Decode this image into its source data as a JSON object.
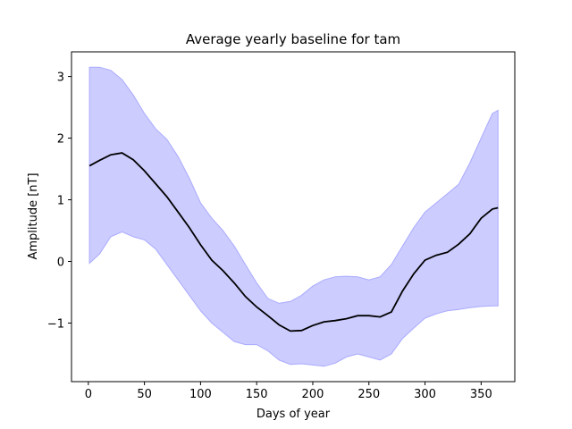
{
  "chart_data": {
    "type": "area",
    "title": "Average yearly baseline for tam",
    "xlabel": "Days of year",
    "ylabel": "Amplitude [nT]",
    "xlim": [
      -15,
      380
    ],
    "ylim": [
      -1.95,
      3.4
    ],
    "xticks": [
      0,
      50,
      100,
      150,
      200,
      250,
      300,
      350
    ],
    "yticks": [
      -1,
      0,
      1,
      2,
      3
    ],
    "grid": false,
    "colors": {
      "mean": "#000000",
      "band": "#ccccff",
      "band_edge": "#aaaaff"
    },
    "x": [
      1,
      10,
      20,
      30,
      40,
      50,
      60,
      70,
      80,
      90,
      100,
      110,
      120,
      130,
      140,
      150,
      160,
      170,
      180,
      190,
      200,
      210,
      220,
      230,
      240,
      250,
      260,
      270,
      280,
      290,
      300,
      310,
      320,
      330,
      340,
      350,
      360,
      365
    ],
    "series": [
      {
        "role": "mean",
        "values": [
          1.55,
          1.64,
          1.73,
          1.76,
          1.65,
          1.47,
          1.26,
          1.05,
          0.8,
          0.55,
          0.27,
          0.02,
          -0.15,
          -0.35,
          -0.57,
          -0.74,
          -0.88,
          -1.03,
          -1.13,
          -1.12,
          -1.04,
          -0.98,
          -0.96,
          -0.93,
          -0.88,
          -0.88,
          -0.9,
          -0.82,
          -0.48,
          -0.2,
          0.02,
          0.1,
          0.15,
          0.28,
          0.45,
          0.7,
          0.85,
          0.87
        ]
      },
      {
        "role": "upper",
        "values": [
          3.15,
          3.15,
          3.1,
          2.95,
          2.7,
          2.4,
          2.15,
          1.98,
          1.7,
          1.35,
          0.95,
          0.7,
          0.5,
          0.25,
          -0.05,
          -0.35,
          -0.6,
          -0.68,
          -0.65,
          -0.55,
          -0.4,
          -0.3,
          -0.25,
          -0.24,
          -0.25,
          -0.3,
          -0.25,
          -0.05,
          0.25,
          0.55,
          0.8,
          0.95,
          1.1,
          1.25,
          1.6,
          2.0,
          2.4,
          2.45
        ]
      },
      {
        "role": "lower",
        "values": [
          -0.03,
          0.12,
          0.4,
          0.48,
          0.4,
          0.35,
          0.2,
          -0.05,
          -0.3,
          -0.55,
          -0.8,
          -1.0,
          -1.15,
          -1.3,
          -1.35,
          -1.35,
          -1.45,
          -1.6,
          -1.67,
          -1.66,
          -1.68,
          -1.7,
          -1.65,
          -1.55,
          -1.5,
          -1.55,
          -1.6,
          -1.5,
          -1.25,
          -1.08,
          -0.92,
          -0.85,
          -0.8,
          -0.78,
          -0.75,
          -0.73,
          -0.72,
          -0.72
        ]
      }
    ]
  }
}
